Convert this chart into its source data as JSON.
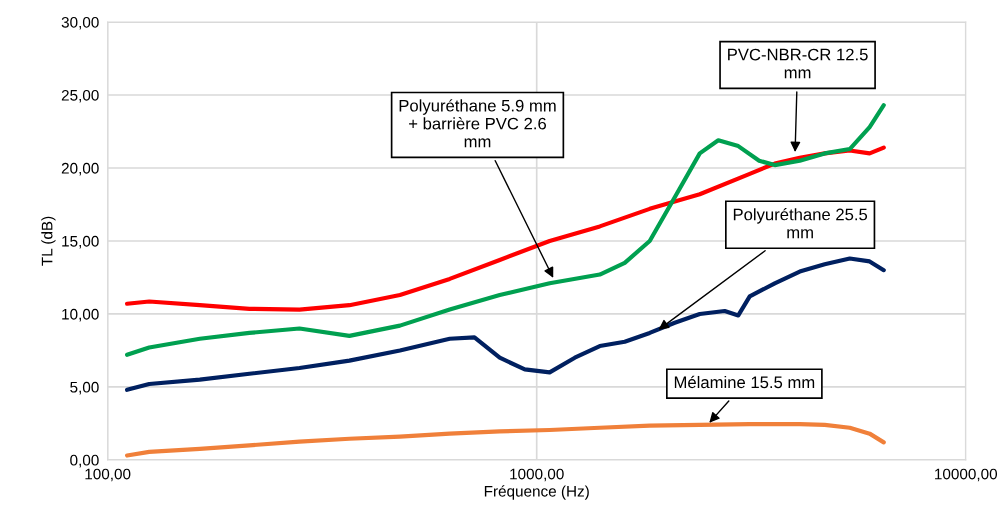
{
  "chart_data": {
    "type": "line",
    "xlabel": "Fréquence (Hz)",
    "ylabel": "TL (dB)",
    "log": "x",
    "grid": true,
    "marker": "none",
    "line_style": "solid",
    "xlim": [
      100,
      10000
    ],
    "xticks": [
      {
        "value": 100,
        "label": "100,00"
      },
      {
        "value": 1000,
        "label": "1000,00"
      },
      {
        "value": 10000,
        "label": "10000,00"
      }
    ],
    "ylim": [
      0,
      30
    ],
    "yticks": [
      {
        "value": 0,
        "label": "0,00"
      },
      {
        "value": 5,
        "label": "5,00"
      },
      {
        "value": 10,
        "label": "10,00"
      },
      {
        "value": 15,
        "label": "15,00"
      },
      {
        "value": 20,
        "label": "20,00"
      },
      {
        "value": 25,
        "label": "25,00"
      },
      {
        "value": 30,
        "label": "30,00"
      }
    ],
    "series": [
      {
        "color": "#ff0000",
        "x": [
          111,
          125,
          164,
          214,
          280,
          366,
          480,
          627,
          820,
          1072,
          1403,
          1834,
          2399,
          3137,
          3588,
          4103,
          4691,
          5366,
          5970,
          6440
        ],
        "values": [
          10.7,
          10.85,
          10.6,
          10.35,
          10.3,
          10.6,
          11.3,
          12.4,
          13.7,
          15.0,
          16.0,
          17.2,
          18.2,
          19.6,
          20.3,
          20.7,
          21.0,
          21.2,
          21.0,
          21.4
        ]
      },
      {
        "color": "#00a050",
        "x": [
          111,
          125,
          164,
          214,
          280,
          366,
          480,
          627,
          820,
          1072,
          1403,
          1604,
          1834,
          2098,
          2399,
          2650,
          2950,
          3300,
          3588,
          4103,
          4691,
          5366,
          5970,
          6440
        ],
        "values": [
          7.2,
          7.7,
          8.3,
          8.7,
          9.0,
          8.5,
          9.2,
          10.3,
          11.3,
          12.1,
          12.7,
          13.5,
          15.0,
          18.0,
          21.0,
          21.9,
          21.5,
          20.5,
          20.2,
          20.5,
          21.0,
          21.3,
          22.8,
          24.3
        ]
      },
      {
        "color": "#002060",
        "x": [
          111,
          125,
          164,
          214,
          280,
          366,
          480,
          627,
          716,
          820,
          938,
          1072,
          1227,
          1403,
          1604,
          1834,
          2098,
          2399,
          2743,
          2950,
          3137,
          3588,
          4103,
          4691,
          5366,
          5970,
          6440
        ],
        "values": [
          4.8,
          5.2,
          5.5,
          5.9,
          6.3,
          6.8,
          7.5,
          8.3,
          8.4,
          7.0,
          6.2,
          6.0,
          7.0,
          7.8,
          8.1,
          8.7,
          9.4,
          10.0,
          10.2,
          9.9,
          11.2,
          12.1,
          12.9,
          13.4,
          13.8,
          13.6,
          13.0
        ]
      },
      {
        "color": "#f0803a",
        "x": [
          111,
          125,
          164,
          214,
          280,
          366,
          480,
          627,
          820,
          1072,
          1403,
          1834,
          2399,
          3137,
          4103,
          4691,
          5366,
          5970,
          6440
        ],
        "values": [
          0.3,
          0.55,
          0.75,
          1.0,
          1.25,
          1.45,
          1.6,
          1.8,
          1.95,
          2.05,
          2.2,
          2.35,
          2.4,
          2.45,
          2.45,
          2.4,
          2.2,
          1.8,
          1.2
        ]
      }
    ],
    "annotations": [
      {
        "text": "Polyuréthane 5.9 mm\n+ barrière PVC 2.6\nmm",
        "x": 1100,
        "y": 12.3
      },
      {
        "text": "PVC-NBR-CR 12.5\nmm",
        "x": 4000,
        "y": 20.9
      },
      {
        "text": "Polyuréthane 25.5\nmm",
        "x": 1900,
        "y": 8.8
      },
      {
        "text": "Mélamine 15.5 mm",
        "x": 2500,
        "y": 2.4
      }
    ]
  }
}
